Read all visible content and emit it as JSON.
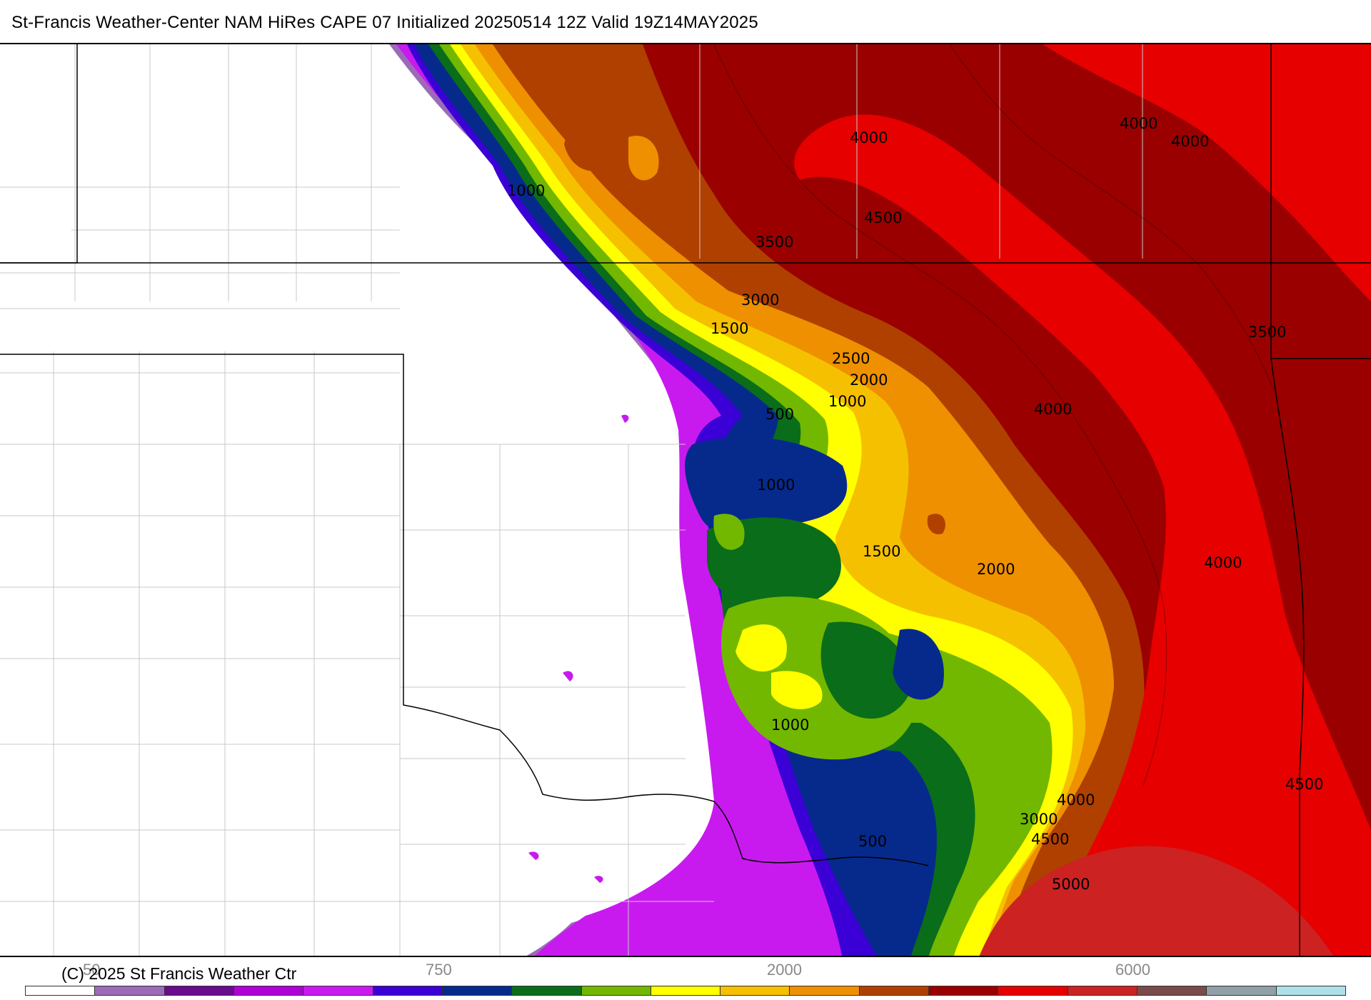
{
  "title": "St-Francis Weather-Center NAM HiRes CAPE  07 Initialized 20250514 12Z Valid 19Z14MAY2025",
  "copyright": "(C) 2025 St Francis Weather Ctr",
  "contour_labels": [
    "4000",
    "4000",
    "4000",
    "4500",
    "1000",
    "3500",
    "3000",
    "1500",
    "3500",
    "2500",
    "2000",
    "1000",
    "500",
    "4000",
    "1000",
    "1500",
    "2000",
    "4000",
    "1000",
    "4500",
    "4000",
    "3000",
    "4500",
    "500",
    "5000"
  ],
  "colorbar": {
    "tick_labels": [
      "50",
      "750",
      "2000",
      "6000"
    ],
    "colors": [
      "#ffffff",
      "#9b6bb8",
      "#6a0a8c",
      "#b000d8",
      "#c81aef",
      "#3a00d6",
      "#062a8c",
      "#0a6d1a",
      "#72b800",
      "#ffff00",
      "#f5c000",
      "#ee9000",
      "#b04000",
      "#9a0000",
      "#e60000",
      "#cc2222",
      "#7a4b4b",
      "#8fa0a6",
      "#aee0ea"
    ]
  },
  "colors": {
    "magenta": "#c81aef",
    "blue": "#3a00d6",
    "navy": "#062a8c",
    "green": "#0a6d1a",
    "yellowgreen": "#72b800",
    "yellow": "#ffff00",
    "orange": "#ee9000",
    "darkred": "#9a0000",
    "red": "#e60000"
  }
}
